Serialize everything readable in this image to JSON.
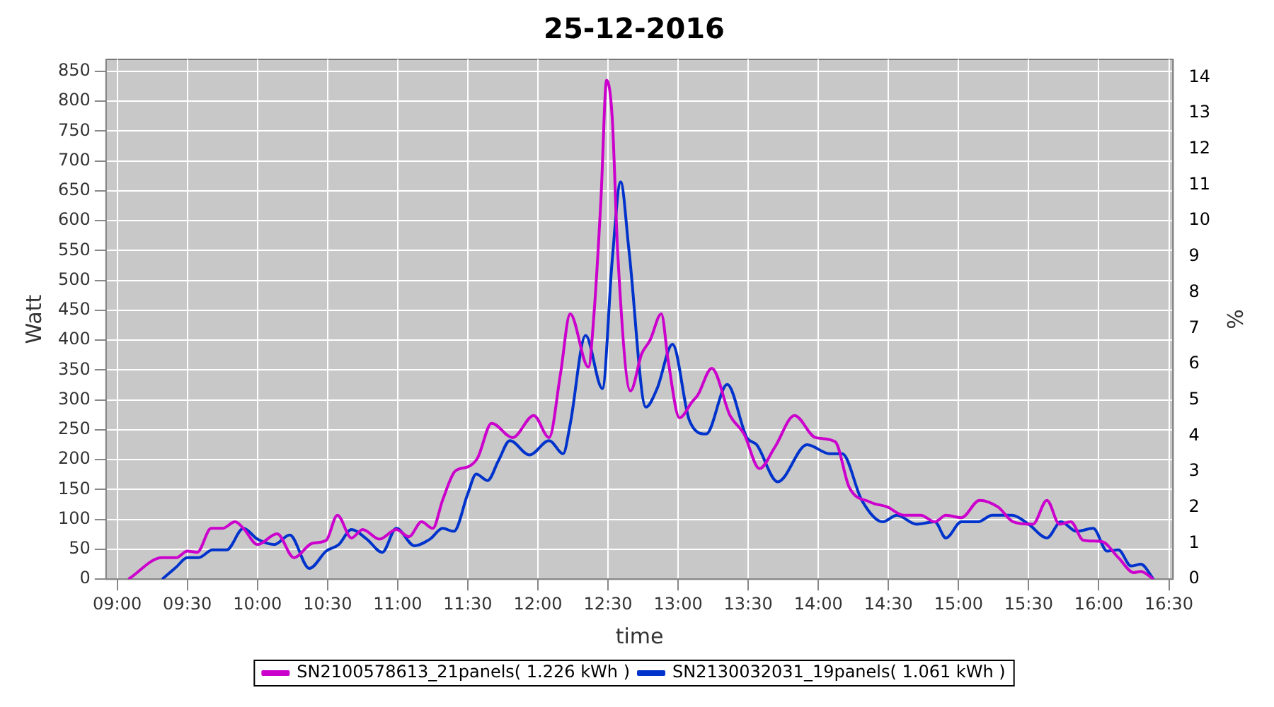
{
  "chart_data": {
    "type": "line",
    "title": "25-12-2016",
    "xlabel": "time",
    "ylabel": "Watt",
    "y2label": "%",
    "xlim": [
      8.92,
      16.53
    ],
    "xticks": [
      {
        "value": 9,
        "label": "09:00"
      },
      {
        "value": 9.5,
        "label": "09:30"
      },
      {
        "value": 10,
        "label": "10:00"
      },
      {
        "value": 10.5,
        "label": "10:30"
      },
      {
        "value": 11,
        "label": "11:00"
      },
      {
        "value": 11.5,
        "label": "11:30"
      },
      {
        "value": 12,
        "label": "12:00"
      },
      {
        "value": 12.5,
        "label": "12:30"
      },
      {
        "value": 13,
        "label": "13:00"
      },
      {
        "value": 13.5,
        "label": "13:30"
      },
      {
        "value": 14,
        "label": "14:00"
      },
      {
        "value": 14.5,
        "label": "14:30"
      },
      {
        "value": 15,
        "label": "15:00"
      },
      {
        "value": 15.5,
        "label": "15:30"
      },
      {
        "value": 16,
        "label": "16:00"
      },
      {
        "value": 16.5,
        "label": "16:30"
      }
    ],
    "ylim": [
      0,
      870
    ],
    "yticks": [
      0,
      50,
      100,
      150,
      200,
      250,
      300,
      350,
      400,
      450,
      500,
      550,
      600,
      650,
      700,
      750,
      800,
      850
    ],
    "y2lim": [
      0,
      14.5
    ],
    "y2ticks": [
      0,
      1,
      2,
      3,
      4,
      5,
      6,
      7,
      8,
      9,
      10,
      11,
      12,
      13,
      14
    ],
    "grid": true,
    "legend": "bottom",
    "line_style": "solid",
    "series": [
      {
        "name": "SN2100578613_21panels( 1.226 kWh )",
        "color": "#cc00cc",
        "x": [
          9.08,
          9.32,
          9.42,
          9.5,
          9.57,
          9.67,
          9.75,
          9.84,
          9.9,
          10.0,
          10.14,
          10.26,
          10.39,
          10.49,
          10.57,
          10.67,
          10.75,
          10.87,
          10.99,
          11.08,
          11.17,
          11.25,
          11.32,
          11.41,
          11.5,
          11.57,
          11.67,
          11.82,
          11.97,
          12.08,
          12.16,
          12.23,
          12.36,
          12.4,
          12.45,
          12.49,
          12.53,
          12.57,
          12.66,
          12.74,
          12.8,
          12.88,
          12.93,
          13.01,
          13.1,
          13.14,
          13.24,
          13.37,
          13.47,
          13.58,
          13.69,
          13.83,
          13.98,
          14.12,
          14.22,
          14.37,
          14.49,
          14.61,
          14.73,
          14.83,
          14.91,
          15.02,
          15.15,
          15.28,
          15.39,
          15.53,
          15.63,
          15.72,
          15.8,
          15.89,
          16.02,
          16.14,
          16.25,
          16.3,
          16.39
        ],
        "values": [
          0,
          36,
          36,
          47,
          45,
          85,
          85,
          96,
          85,
          58,
          76,
          36,
          60,
          65,
          107,
          69,
          83,
          67,
          83,
          71,
          96,
          85,
          132,
          181,
          188,
          203,
          261,
          237,
          274,
          237,
          342,
          444,
          355,
          444,
          638,
          835,
          772,
          542,
          315,
          377,
          400,
          444,
          364,
          270,
          297,
          308,
          353,
          274,
          243,
          185,
          221,
          274,
          237,
          230,
          154,
          129,
          121,
          107,
          107,
          96,
          107,
          103,
          132,
          121,
          96,
          92,
          132,
          92,
          96,
          65,
          63,
          36,
          11,
          13,
          0
        ]
      },
      {
        "name": "SN2130032031_19panels( 1.061 kWh )",
        "color": "#0033cc",
        "x": [
          9.32,
          9.42,
          9.5,
          9.58,
          9.68,
          9.78,
          9.9,
          10.0,
          10.12,
          10.23,
          10.37,
          10.49,
          10.58,
          10.67,
          10.78,
          10.89,
          10.99,
          11.12,
          11.23,
          11.32,
          11.4,
          11.5,
          11.56,
          11.64,
          11.72,
          11.8,
          11.94,
          12.08,
          12.18,
          12.23,
          12.34,
          12.46,
          12.53,
          12.59,
          12.65,
          12.77,
          12.85,
          12.96,
          13.08,
          13.2,
          13.35,
          13.49,
          13.56,
          13.71,
          13.92,
          14.08,
          14.17,
          14.31,
          14.46,
          14.56,
          14.7,
          14.83,
          14.91,
          15.02,
          15.14,
          15.24,
          15.38,
          15.5,
          15.63,
          15.73,
          15.84,
          15.96,
          16.06,
          16.14,
          16.23,
          16.3,
          16.39
        ],
        "values": [
          0,
          20,
          36,
          36,
          49,
          49,
          85,
          67,
          58,
          74,
          18,
          47,
          58,
          83,
          67,
          45,
          85,
          56,
          67,
          85,
          80,
          143,
          176,
          165,
          199,
          232,
          208,
          232,
          210,
          259,
          408,
          319,
          534,
          665,
          549,
          288,
          319,
          393,
          266,
          243,
          326,
          237,
          225,
          163,
          225,
          210,
          210,
          132,
          96,
          107,
          92,
          96,
          69,
          96,
          96,
          107,
          107,
          92,
          69,
          96,
          80,
          85,
          47,
          49,
          22,
          25,
          0
        ]
      }
    ]
  }
}
